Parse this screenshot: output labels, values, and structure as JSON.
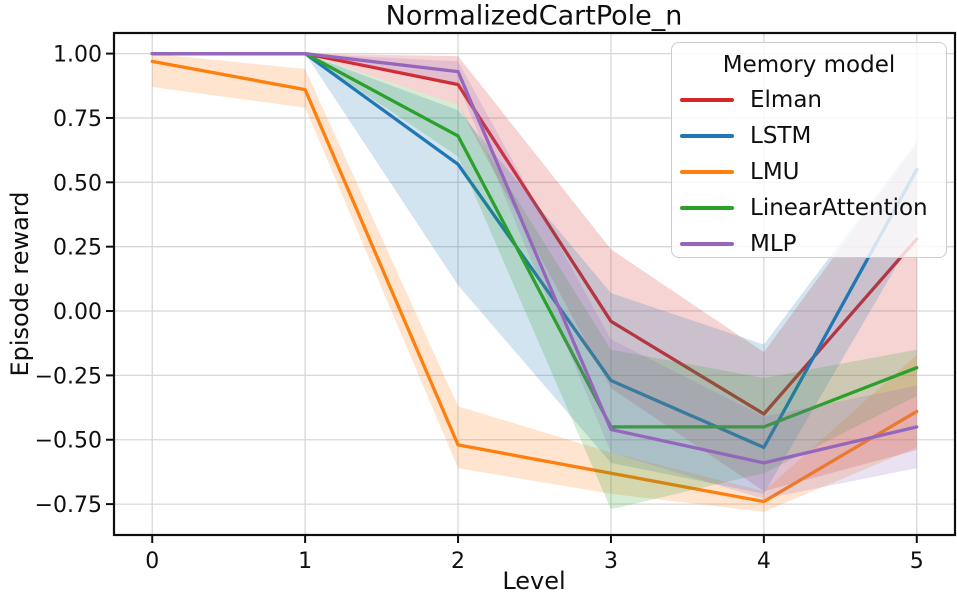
{
  "chart_data": {
    "type": "line",
    "title": "NormalizedCartPole_n",
    "xlabel": "Level",
    "ylabel": "Episode reward",
    "grid": true,
    "band_opacity": 0.2,
    "x": [
      0,
      1,
      2,
      3,
      4,
      5
    ],
    "xtick_labels": [
      "0",
      "1",
      "2",
      "3",
      "4",
      "5"
    ],
    "yticks": [
      1.0,
      0.75,
      0.5,
      0.25,
      0.0,
      -0.25,
      -0.5,
      -0.75
    ],
    "ytick_labels": [
      "1.00",
      "0.75",
      "0.50",
      "0.25",
      "0.00",
      "−0.25",
      "−0.50",
      "−0.75"
    ],
    "xlim": [
      -0.25,
      5.25
    ],
    "ylim": [
      -0.87,
      1.08
    ],
    "legend": {
      "title": "Memory model",
      "position": "upper right"
    },
    "series": [
      {
        "name": "Elman",
        "color": "#d62728",
        "values": [
          1.0,
          1.0,
          0.88,
          -0.04,
          -0.4,
          0.28
        ],
        "band_low": [
          1.0,
          1.0,
          0.8,
          -0.3,
          -0.7,
          -0.54
        ],
        "band_high": [
          1.0,
          1.0,
          0.99,
          0.24,
          -0.16,
          0.65
        ]
      },
      {
        "name": "LSTM",
        "color": "#1f77b4",
        "values": [
          1.0,
          1.0,
          0.57,
          -0.27,
          -0.53,
          0.55
        ],
        "band_low": [
          1.0,
          1.0,
          0.1,
          -0.59,
          -0.71,
          0.31
        ],
        "band_high": [
          1.0,
          1.0,
          0.78,
          0.07,
          -0.13,
          0.66
        ]
      },
      {
        "name": "LMU",
        "color": "#ff7f0e",
        "values": [
          0.97,
          0.86,
          -0.52,
          -0.63,
          -0.74,
          -0.39
        ],
        "band_low": [
          0.87,
          0.79,
          -0.61,
          -0.71,
          -0.78,
          -0.53
        ],
        "band_high": [
          1.0,
          0.94,
          -0.37,
          -0.55,
          -0.7,
          -0.17
        ]
      },
      {
        "name": "LinearAttention",
        "color": "#2ca02c",
        "values": [
          1.0,
          1.0,
          0.68,
          -0.45,
          -0.45,
          -0.22
        ],
        "band_low": [
          1.0,
          1.0,
          0.6,
          -0.77,
          -0.63,
          -0.33
        ],
        "band_high": [
          1.0,
          1.0,
          0.8,
          -0.15,
          -0.26,
          -0.15
        ]
      },
      {
        "name": "MLP",
        "color": "#9467bd",
        "values": [
          1.0,
          1.0,
          0.93,
          -0.46,
          -0.59,
          -0.45
        ],
        "band_low": [
          1.0,
          1.0,
          0.88,
          -0.55,
          -0.73,
          -0.61
        ],
        "band_high": [
          1.0,
          1.0,
          0.97,
          -0.11,
          -0.41,
          -0.29
        ]
      }
    ]
  }
}
